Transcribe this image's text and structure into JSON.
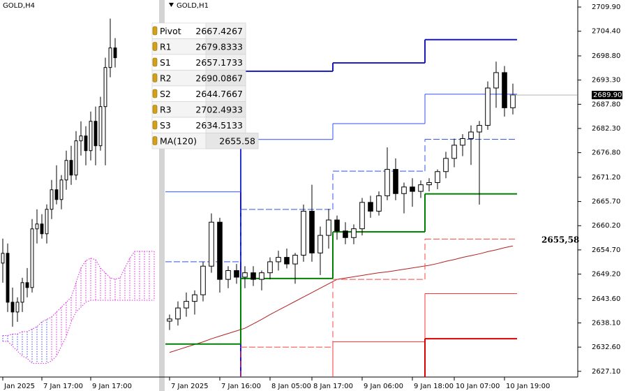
{
  "chart_data": [
    {
      "type": "candlestick",
      "title": "GOLD,H4",
      "categories": [
        "Jan 2025",
        null,
        null,
        null,
        null,
        null,
        null,
        null,
        "7 Jan 17:00",
        null,
        null,
        null,
        null,
        null,
        null,
        null,
        null,
        null,
        "9 Jan 17:00",
        null,
        null,
        null,
        null,
        null,
        null,
        null,
        null,
        null,
        null,
        null,
        null,
        null
      ],
      "open": [
        2648,
        2650,
        2640,
        2638,
        2640,
        2644,
        2643,
        2655,
        2656,
        2654,
        2659,
        2663,
        2661,
        2665,
        2669,
        2666,
        2673,
        2674,
        2671,
        2677,
        2672,
        2680,
        2688,
        2692,
        null,
        null,
        null,
        null,
        null,
        null,
        null,
        null
      ],
      "high": [
        2653,
        2652,
        2643,
        2641,
        2645,
        2647,
        2657,
        2659,
        2658,
        2660,
        2665,
        2668,
        2666,
        2671,
        2672,
        2675,
        2677,
        2676,
        2679,
        2680,
        2682,
        2690,
        2698,
        2694,
        null,
        null,
        null,
        null,
        null,
        null,
        null,
        null
      ],
      "low": [
        2644,
        2638,
        2635,
        2636,
        2638,
        2641,
        2642,
        2652,
        2653,
        2652,
        2657,
        2660,
        2659,
        2663,
        2664,
        2665,
        2670,
        2668,
        2669,
        2668,
        2671,
        2668,
        2686,
        2688,
        null,
        null,
        null,
        null,
        null,
        null,
        null,
        null
      ],
      "close": [
        2650,
        2640,
        2638,
        2640,
        2644,
        2643,
        2655,
        2656,
        2654,
        2659,
        2663,
        2661,
        2665,
        2669,
        2666,
        2673,
        2674,
        2671,
        2677,
        2672,
        2680,
        2688,
        2692,
        2690,
        null,
        null,
        null,
        null,
        null,
        null,
        null,
        null
      ],
      "cloud_upper": [
        2633.2,
        2633.2,
        2633.5,
        2633.5,
        2634,
        2634,
        2634.5,
        2635,
        2636,
        2636.5,
        2637,
        2638,
        2639,
        2640,
        2641,
        2644,
        2647,
        2648.5,
        2649,
        2648.7,
        2647,
        2646,
        2645,
        2644.7,
        2645,
        2647,
        2649,
        2650.4,
        2650.4,
        2650.4,
        2650.4,
        2650.4
      ],
      "cloud_lower": [
        2632,
        2632,
        2631,
        2630,
        2629,
        2628.5,
        2627.5,
        2627.5,
        2627.5,
        2627.5,
        2628,
        2629,
        2631,
        2633,
        2636,
        2638,
        2639,
        2640,
        2640.4,
        2640.4,
        2640.4,
        2640.4,
        2640.4,
        2640.4,
        2640.4,
        2640.4,
        2640.4,
        2640.4,
        2640.4,
        2640.4,
        2640.4,
        2640.4
      ],
      "cloud_color": "#e020e0",
      "ylim": [
        2624.7,
        2701.8
      ]
    },
    {
      "type": "candlestick",
      "title": "GOLD,H1",
      "categories": [
        "7 Jan 2025",
        null,
        null,
        null,
        null,
        null,
        "7 Jan 16:00",
        null,
        null,
        null,
        null,
        null,
        "8 Jan 05:00",
        null,
        null,
        null,
        null,
        "8 Jan 17:00",
        null,
        null,
        null,
        null,
        null,
        "9 Jan 06:00",
        null,
        null,
        null,
        null,
        null,
        "9 Jan 18:00",
        null,
        null,
        null,
        null,
        "10 Jan 07:00",
        null,
        null,
        null,
        null,
        null,
        "10 Jan 19:00",
        null
      ],
      "open": [
        2638.5,
        2639,
        2641.5,
        2643,
        2644.5,
        2651,
        2661,
        2648,
        2650,
        2648.5,
        2649.5,
        2648,
        2649.5,
        2652,
        2653,
        2651.5,
        2653.5,
        2663.5,
        2654,
        2658,
        2661.5,
        2659,
        2657.5,
        2659.5,
        2665.5,
        2663.5,
        2667,
        2673,
        2667.5,
        2669,
        2668,
        2669.5,
        2670,
        2672.5,
        2675.5,
        2678.5,
        2680,
        2681.5,
        2683,
        2691.5,
        2695,
        2687
      ],
      "high": [
        2640,
        2643,
        2645,
        2645.5,
        2652,
        2663,
        2662,
        2651,
        2651.5,
        2651,
        2651,
        2650,
        2653,
        2654.5,
        2655,
        2654,
        2665,
        2669.5,
        2660,
        2664,
        2662.5,
        2661,
        2660.5,
        2666.5,
        2667,
        2668,
        2678,
        2675.5,
        2670,
        2671,
        2670.5,
        2671,
        2673,
        2677,
        2680,
        2681,
        2683,
        2684,
        2693,
        2697.5,
        2696.5,
        2692.5
      ],
      "low": [
        2636.5,
        2637.5,
        2639.5,
        2640,
        2643,
        2649.5,
        2645,
        2646,
        2647,
        2646,
        2646.5,
        2645.5,
        2648,
        2650,
        2650.5,
        2647,
        2652,
        2652,
        2649,
        2655,
        2657,
        2656,
        2656,
        2658,
        2662,
        2662.5,
        2666,
        2666,
        2663,
        2664.5,
        2666.5,
        2668,
        2668.5,
        2671,
        2673.5,
        2676,
        2674,
        2665,
        2682,
        2687,
        2685,
        2685.5
      ],
      "close": [
        2639,
        2641.5,
        2643,
        2644.5,
        2651,
        2661,
        2648,
        2650,
        2648.5,
        2649.5,
        2648,
        2649.5,
        2652,
        2653,
        2651.5,
        2653.5,
        2663.5,
        2654,
        2658,
        2661.5,
        2659,
        2657.5,
        2659.5,
        2665.5,
        2663.5,
        2667,
        2673,
        2667.5,
        2669,
        2668,
        2669.5,
        2670,
        2672.5,
        2675.5,
        2678.5,
        2680,
        2681.5,
        2683,
        2691.5,
        2695,
        2687,
        2689.9
      ],
      "levels": [
        {
          "color": "#1a1ab8",
          "width": 2,
          "style": "solid",
          "values": [
            null,
            null,
            null,
            null,
            null,
            null,
            null,
            null,
            null,
            2695.3,
            2695.3,
            2695.3,
            2695.3,
            2695.3,
            2695.3,
            2695.3,
            2695.3,
            2695.3,
            2695.3,
            2695.3,
            2697.2,
            2697.2,
            2697.2,
            2697.2,
            2697.2,
            2697.2,
            2697.2,
            2697.2,
            2697.2,
            2697.2,
            2697.2,
            2702.49,
            2702.49,
            2702.49,
            2702.49,
            2702.49,
            2702.49,
            2702.49,
            2702.49,
            2702.49,
            2702.49,
            2702.49
          ]
        },
        {
          "color": "#3050f0",
          "width": 1,
          "style": "solid",
          "values": [
            2667.9,
            2667.9,
            2667.9,
            2667.9,
            2667.9,
            2667.9,
            2667.9,
            2667.9,
            2667.9,
            2679.8,
            2679.8,
            2679.8,
            2679.8,
            2679.8,
            2679.8,
            2679.8,
            2679.8,
            2679.8,
            2679.8,
            2679.8,
            2683.4,
            2683.4,
            2683.4,
            2683.4,
            2683.4,
            2683.4,
            2683.4,
            2683.4,
            2683.4,
            2683.4,
            2683.4,
            2690.09,
            2690.09,
            2690.09,
            2690.09,
            2690.09,
            2690.09,
            2690.09,
            2690.09,
            2690.09,
            2690.09,
            2690.09
          ]
        },
        {
          "color": "#3050f0",
          "width": 1,
          "style": "dashed",
          "values": [
            2652,
            2652,
            2652,
            2652,
            2652,
            2652,
            2652,
            2652,
            2652,
            2663.9,
            2663.9,
            2663.9,
            2663.9,
            2663.9,
            2663.9,
            2663.9,
            2663.9,
            2663.9,
            2663.9,
            2663.9,
            2672.6,
            2672.6,
            2672.6,
            2672.6,
            2672.6,
            2672.6,
            2672.6,
            2672.6,
            2672.6,
            2672.6,
            2672.6,
            2679.83,
            2679.83,
            2679.83,
            2679.83,
            2679.83,
            2679.83,
            2679.83,
            2679.83,
            2679.83,
            2679.83,
            2679.83
          ]
        },
        {
          "color": "#008000",
          "width": 2,
          "style": "solid",
          "values": [
            2633.3,
            2633.3,
            2633.3,
            2633.3,
            2633.3,
            2633.3,
            2633.3,
            2633.3,
            2633.3,
            2648.2,
            2648.2,
            2648.2,
            2648.2,
            2648.2,
            2648.2,
            2648.2,
            2648.2,
            2648.2,
            2648.2,
            2648.2,
            2658.8,
            2658.8,
            2658.8,
            2658.8,
            2658.8,
            2658.8,
            2658.8,
            2658.8,
            2658.8,
            2658.8,
            2658.8,
            2667.43,
            2667.43,
            2667.43,
            2667.43,
            2667.43,
            2667.43,
            2667.43,
            2667.43,
            2667.43,
            2667.43,
            2667.43
          ]
        },
        {
          "color": "#ff4040",
          "width": 1,
          "style": "dashed",
          "values": [
            null,
            null,
            null,
            null,
            null,
            null,
            null,
            null,
            null,
            2632.6,
            2632.6,
            2632.6,
            2632.6,
            2632.6,
            2632.6,
            2632.6,
            2632.6,
            2632.6,
            2632.6,
            2632.6,
            2648,
            2648,
            2648,
            2648,
            2648,
            2648,
            2648,
            2648,
            2648,
            2648,
            2648,
            2657.17,
            2657.17,
            2657.17,
            2657.17,
            2657.17,
            2657.17,
            2657.17,
            2657.17,
            2657.17,
            2657.17,
            2657.17
          ]
        },
        {
          "color": "#ff3030",
          "width": 1,
          "style": "solid",
          "values": [
            null,
            null,
            null,
            null,
            null,
            null,
            null,
            null,
            null,
            null,
            null,
            null,
            null,
            null,
            null,
            null,
            null,
            null,
            null,
            null,
            2633.8,
            2633.8,
            2633.8,
            2633.8,
            2633.8,
            2633.8,
            2633.8,
            2633.8,
            2633.8,
            2633.8,
            2633.8,
            2644.77,
            2644.77,
            2644.77,
            2644.77,
            2644.77,
            2644.77,
            2644.77,
            2644.77,
            2644.77,
            2644.77,
            2644.77
          ]
        },
        {
          "color": "#dd0000",
          "width": 2,
          "style": "solid",
          "values": [
            null,
            null,
            null,
            null,
            null,
            null,
            null,
            null,
            null,
            null,
            null,
            null,
            null,
            null,
            null,
            null,
            null,
            null,
            null,
            null,
            null,
            null,
            null,
            null,
            null,
            null,
            null,
            null,
            null,
            null,
            null,
            2634.51,
            2634.51,
            2634.51,
            2634.51,
            2634.51,
            2634.51,
            2634.51,
            2634.51,
            2634.51,
            2634.51,
            2634.51
          ]
        }
      ],
      "ma": {
        "color": "#b22222",
        "values": [
          2631.4,
          2632,
          2632.6,
          2633.2,
          2633.8,
          2634.5,
          2635.1,
          2635.7,
          2636.3,
          2636.9,
          2637.9,
          2638.9,
          2640,
          2641,
          2642,
          2643,
          2644,
          2645,
          2646,
          2647,
          2648,
          2648.3,
          2648.6,
          2648.9,
          2649.2,
          2649.5,
          2649.7,
          2650,
          2650.3,
          2650.6,
          2650.9,
          2651.2,
          2651.6,
          2652.1,
          2652.5,
          2653,
          2653.4,
          2653.8,
          2654.3,
          2654.7,
          2655.2,
          2655.6
        ]
      },
      "annotation": "2655,58",
      "last_price": {
        "value": 2689.9,
        "label": "2689.90"
      },
      "ylim": [
        2625.8,
        2711.5
      ],
      "yticks": [
        {
          "value": 2709.9,
          "label": "2709.90"
        },
        {
          "value": 2704.4,
          "label": "2704.40"
        },
        {
          "value": 2698.8,
          "label": "2698.80"
        },
        {
          "value": 2693.3,
          "label": "2693.30"
        },
        {
          "value": 2687.8,
          "label": "2687.80"
        },
        {
          "value": 2682.3,
          "label": "2682.30"
        },
        {
          "value": 2676.8,
          "label": "2676.80"
        },
        {
          "value": 2671.2,
          "label": "2671.20"
        },
        {
          "value": 2665.7,
          "label": "2665.70"
        },
        {
          "value": 2660.2,
          "label": "2660.20"
        },
        {
          "value": 2654.7,
          "label": "2654.70"
        },
        {
          "value": 2649.2,
          "label": "2649.20"
        },
        {
          "value": 2643.6,
          "label": "2643.60"
        },
        {
          "value": 2638.1,
          "label": "2638.10"
        },
        {
          "value": 2632.6,
          "label": "2632.60"
        },
        {
          "value": 2627.1,
          "label": "2627.10"
        }
      ]
    }
  ],
  "pivot_table": {
    "rows": [
      [
        "Pivot",
        2667.4267
      ],
      [
        "R1",
        2679.8333
      ],
      [
        "S1",
        2657.1733
      ],
      [
        "R2",
        2690.0867
      ],
      [
        "S2",
        2644.7667
      ],
      [
        "R3",
        2702.4933
      ],
      [
        "S3",
        2634.5133
      ],
      [
        "MA(120)",
        2655.58
      ]
    ]
  }
}
